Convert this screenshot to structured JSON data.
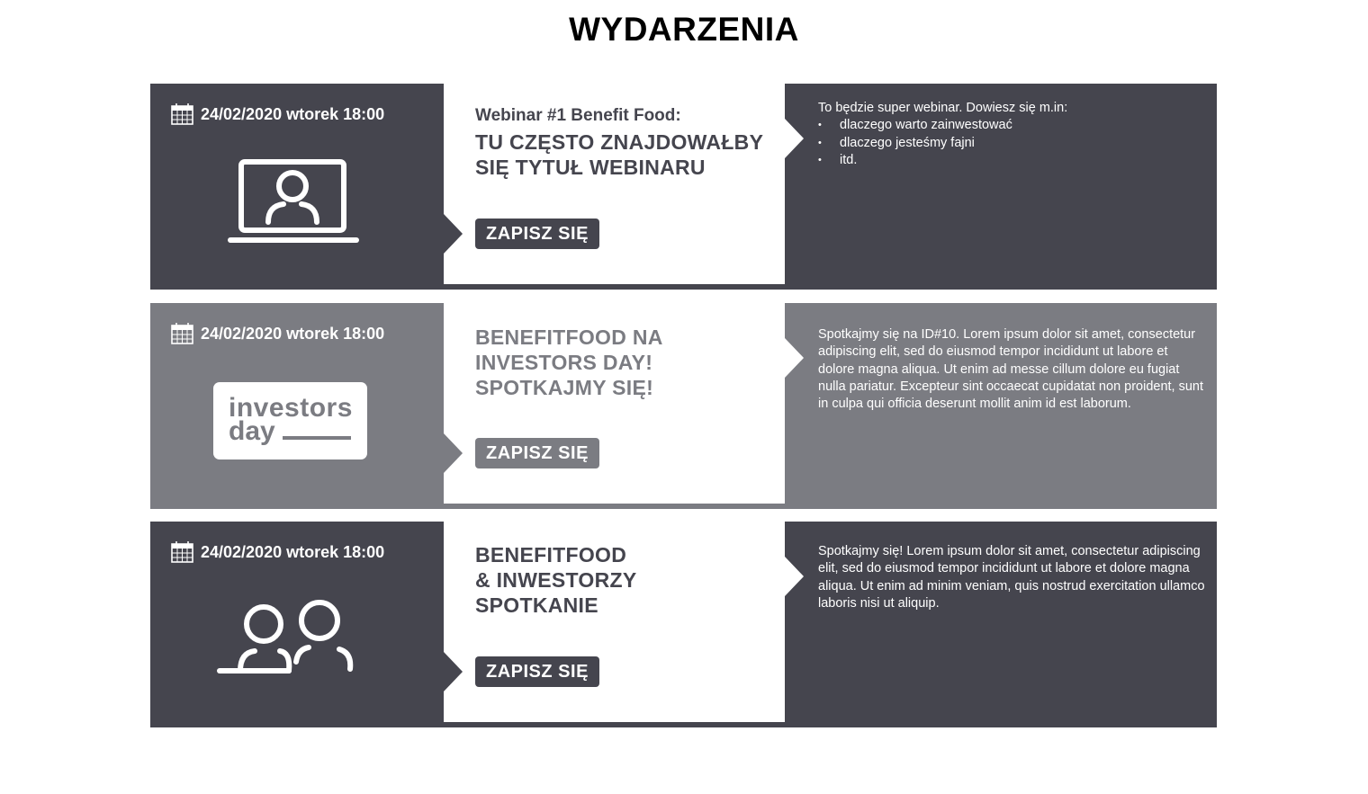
{
  "page": {
    "title": "WYDARZENIA"
  },
  "events": [
    {
      "date": "24/02/2020 wtorek 18:00",
      "subtitle": "Webinar #1 Benefit Food:",
      "headline_lines": [
        "TU CZĘSTO ZNAJDOWAŁBY",
        "SIĘ TYTUŁ WEBINARU"
      ],
      "button_label": "ZAPISZ SIĘ",
      "description_intro": "To będzie super webinar. Dowiesz się m.in:",
      "bullets": [
        "dlaczego warto zainwestować",
        "dlaczego jesteśmy fajni",
        "itd."
      ],
      "icon": "laptop-user-icon",
      "theme": "dark"
    },
    {
      "date": "24/02/2020 wtorek 18:00",
      "subtitle": "",
      "headline_lines": [
        "BENEFITFOOD NA",
        "INVESTORS DAY!",
        "SPOTKAJMY SIĘ!"
      ],
      "button_label": "ZAPISZ SIĘ",
      "description": "Spotkajmy się na ID#10. Lorem ipsum dolor sit amet, consectetur adipiscing elit, sed do eiusmod tempor incididunt ut labore et dolore magna aliqua. Ut enim ad messe cillum dolore eu fugiat nulla pariatur. Excepteur sint occaecat cupidatat non proident, sunt in culpa qui officia deserunt mollit anim id est laborum.",
      "logo": {
        "line1": "investors",
        "line2": "day"
      },
      "theme": "grey"
    },
    {
      "date": "24/02/2020 wtorek 18:00",
      "subtitle": "",
      "headline_lines": [
        "BENEFITFOOD",
        "& INWESTORZY",
        "SPOTKANIE"
      ],
      "button_label": "ZAPISZ SIĘ",
      "description": "Spotkajmy się!  Lorem ipsum dolor sit amet, consectetur adipiscing elit, sed do eiusmod tempor incididunt ut labore et dolore magna aliqua. Ut enim ad minim veniam, quis nostrud exercitation ullamco laboris nisi ut aliquip.",
      "icon": "two-people-icon",
      "theme": "dark"
    }
  ],
  "colors": {
    "dark": "#45454e",
    "grey": "#7b7c82",
    "white": "#ffffff"
  }
}
